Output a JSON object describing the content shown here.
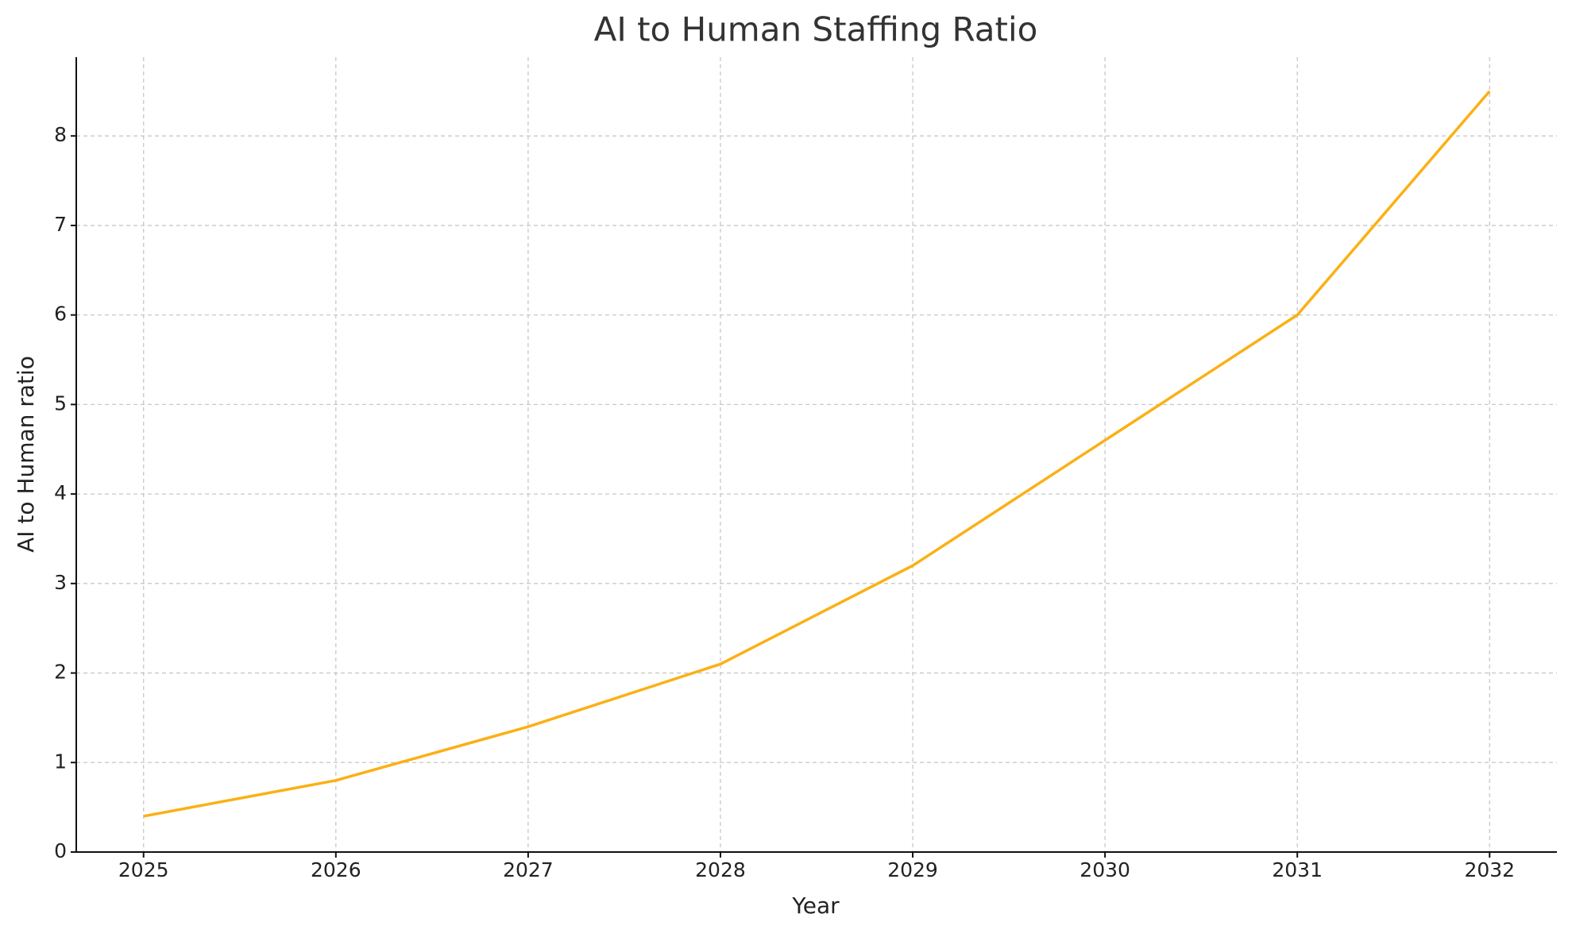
{
  "chart_data": {
    "type": "line",
    "title": "AI to Human Staffing Ratio",
    "x_label": "Year",
    "y_label": "AI to Human ratio",
    "x": [
      2025,
      2026,
      2027,
      2028,
      2029,
      2030,
      2031,
      2032
    ],
    "series": [
      {
        "name": "AI to Human ratio",
        "color": "#fbb014",
        "values": [
          0.4,
          0.8,
          1.4,
          2.1,
          3.2,
          4.6,
          6.0,
          8.5
        ]
      }
    ],
    "xlim": [
      2024.65,
      2032.35
    ],
    "xticks": [
      2025,
      2026,
      2027,
      2028,
      2029,
      2030,
      2031,
      2032
    ],
    "ylim": [
      0,
      8.88
    ],
    "yticks": [
      0,
      1,
      2,
      3,
      4,
      5,
      6,
      7,
      8
    ],
    "grid": true,
    "legend": false
  }
}
